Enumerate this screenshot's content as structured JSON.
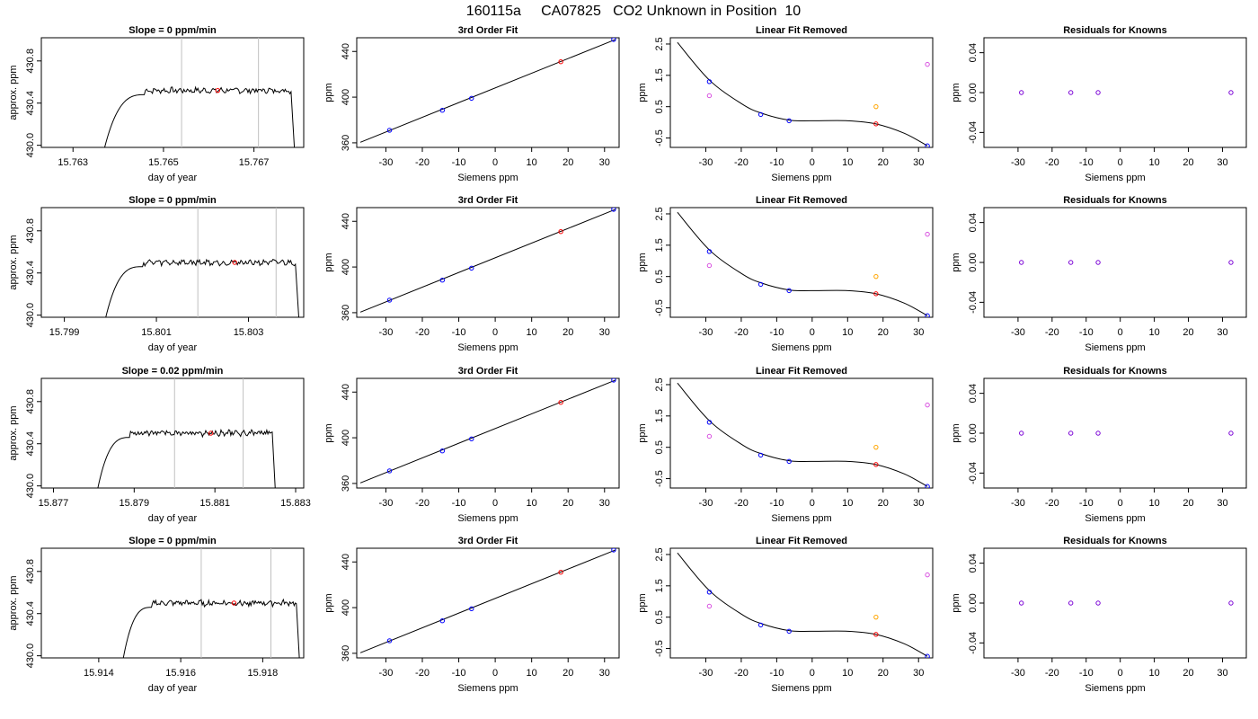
{
  "page": {
    "title": "160115a     CA07825   CO2 Unknown in Position  10"
  },
  "colors": {
    "axis": "#000000",
    "trace": "#000000",
    "vline": "#c0c0c0",
    "known": "#0000ff",
    "unknown": "#ff0000",
    "magenta": "#d84fe0",
    "orange": "#ffa500",
    "residual": "#7a00d6"
  },
  "chart_data": [
    {
      "type": "line",
      "row": 0,
      "col": 0,
      "title": "Slope =  0  ppm/min",
      "xlabel": "day of year",
      "ylabel": "approx. ppm",
      "xlim": [
        15.7623,
        15.7681
      ],
      "ylim": [
        429.98,
        431.02
      ],
      "xticks": [
        15.763,
        15.765,
        15.767
      ],
      "xticklabels": [
        "15.763",
        "15.765",
        "15.767"
      ],
      "yticks": [
        430.0,
        430.4,
        430.8
      ],
      "yticklabels": [
        "430.0",
        "430.4",
        "430.8"
      ],
      "vlines": [
        15.7654,
        15.7671
      ],
      "trace": {
        "x0": 15.7637,
        "x1": 15.7679,
        "rise_end": 15.7646,
        "level": 430.52
      },
      "marker": {
        "x": 15.7662,
        "y": 430.52
      }
    },
    {
      "type": "scatter",
      "row": 0,
      "col": 1,
      "title": "3rd Order Fit",
      "xlabel": "Siemens ppm",
      "ylabel": "ppm",
      "xlim": [
        -38,
        34
      ],
      "ylim": [
        356,
        452
      ],
      "xticks": [
        -30,
        -20,
        -10,
        0,
        10,
        20,
        30
      ],
      "xticklabels": [
        "-30",
        "-20",
        "-10",
        "0",
        "10",
        "20",
        "30"
      ],
      "yticks": [
        360,
        400,
        440
      ],
      "yticklabels": [
        "360",
        "400",
        "440"
      ],
      "line": [
        [
          -37,
          360.5
        ],
        [
          33,
          450.5
        ]
      ],
      "knowns": [
        [
          -29,
          371
        ],
        [
          -14.5,
          388.5
        ],
        [
          -6.5,
          399
        ],
        [
          32.5,
          450.5
        ]
      ],
      "unknown": [
        [
          18,
          431
        ]
      ]
    },
    {
      "type": "scatter",
      "row": 0,
      "col": 2,
      "title": "Linear Fit Removed",
      "xlabel": "Siemens ppm",
      "ylabel": "ppm",
      "xlim": [
        -40,
        34
      ],
      "ylim": [
        -0.8,
        2.7
      ],
      "xticks": [
        -30,
        -20,
        -10,
        0,
        10,
        20,
        30
      ],
      "xticklabels": [
        "-30",
        "-20",
        "-10",
        "0",
        "10",
        "20",
        "30"
      ],
      "yticks": [
        -0.5,
        0.5,
        1.5,
        2.5
      ],
      "yticklabels": [
        "-0.5",
        "0.5",
        "1.5",
        "2.5"
      ],
      "curve": [
        [
          -38,
          2.55
        ],
        [
          -29,
          1.35
        ],
        [
          -20,
          0.6
        ],
        [
          -14.5,
          0.3
        ],
        [
          -6.5,
          0.07
        ],
        [
          0,
          0.05
        ],
        [
          10,
          0.05
        ],
        [
          18,
          -0.05
        ],
        [
          26,
          -0.35
        ],
        [
          32.5,
          -0.75
        ]
      ],
      "knowns": [
        [
          -29,
          1.3
        ],
        [
          -14.5,
          0.25
        ],
        [
          -6.5,
          0.05
        ],
        [
          32.5,
          -0.75
        ]
      ],
      "unknown": [
        [
          18,
          -0.05
        ]
      ],
      "magenta": [
        [
          -29,
          0.85
        ],
        [
          32.5,
          1.85
        ]
      ],
      "orange": [
        [
          18,
          0.5
        ]
      ]
    },
    {
      "type": "scatter",
      "row": 0,
      "col": 3,
      "title": "Residuals for Knowns",
      "xlabel": "Siemens ppm",
      "ylabel": "ppm",
      "xlim": [
        -40,
        37
      ],
      "ylim": [
        -0.055,
        0.055
      ],
      "xticks": [
        -30,
        -20,
        -10,
        0,
        10,
        20,
        30
      ],
      "xticklabels": [
        "-30",
        "-20",
        "-10",
        "0",
        "10",
        "20",
        "30"
      ],
      "yticks": [
        -0.04,
        0.0,
        0.04
      ],
      "yticklabels": [
        "-0.04",
        "0.00",
        "0.04"
      ],
      "residuals": [
        [
          -29,
          0
        ],
        [
          -14.5,
          0
        ],
        [
          -6.5,
          0
        ],
        [
          32.5,
          0
        ]
      ]
    },
    {
      "type": "line",
      "row": 1,
      "col": 0,
      "title": "Slope =  0  ppm/min",
      "xlabel": "day of year",
      "ylabel": "approx. ppm",
      "xlim": [
        15.7985,
        15.8042
      ],
      "ylim": [
        429.98,
        431.02
      ],
      "xticks": [
        15.799,
        15.801,
        15.803
      ],
      "xticklabels": [
        "15.799",
        "15.801",
        "15.803"
      ],
      "yticks": [
        430.0,
        430.4,
        430.8
      ],
      "yticklabels": [
        "430.0",
        "430.4",
        "430.8"
      ],
      "vlines": [
        15.8019,
        15.8036
      ],
      "trace": {
        "x0": 15.7999,
        "x1": 15.8041,
        "rise_end": 15.8007,
        "level": 430.5
      },
      "marker": {
        "x": 15.8027,
        "y": 430.5
      }
    },
    {
      "type": "scatter",
      "row": 1,
      "col": 1,
      "title": "3rd Order Fit",
      "xlabel": "Siemens ppm",
      "ylabel": "ppm",
      "xlim": [
        -38,
        34
      ],
      "ylim": [
        356,
        452
      ],
      "xticks": [
        -30,
        -20,
        -10,
        0,
        10,
        20,
        30
      ],
      "xticklabels": [
        "-30",
        "-20",
        "-10",
        "0",
        "10",
        "20",
        "30"
      ],
      "yticks": [
        360,
        400,
        440
      ],
      "yticklabels": [
        "360",
        "400",
        "440"
      ],
      "line": [
        [
          -37,
          360.5
        ],
        [
          33,
          450.5
        ]
      ],
      "knowns": [
        [
          -29,
          371
        ],
        [
          -14.5,
          388.5
        ],
        [
          -6.5,
          399
        ],
        [
          32.5,
          450.5
        ]
      ],
      "unknown": [
        [
          18,
          431
        ]
      ]
    },
    {
      "type": "scatter",
      "row": 1,
      "col": 2,
      "title": "Linear Fit Removed",
      "xlabel": "Siemens ppm",
      "ylabel": "ppm",
      "xlim": [
        -40,
        34
      ],
      "ylim": [
        -0.8,
        2.7
      ],
      "xticks": [
        -30,
        -20,
        -10,
        0,
        10,
        20,
        30
      ],
      "xticklabels": [
        "-30",
        "-20",
        "-10",
        "0",
        "10",
        "20",
        "30"
      ],
      "yticks": [
        -0.5,
        0.5,
        1.5,
        2.5
      ],
      "yticklabels": [
        "-0.5",
        "0.5",
        "1.5",
        "2.5"
      ],
      "curve": [
        [
          -38,
          2.55
        ],
        [
          -29,
          1.35
        ],
        [
          -20,
          0.6
        ],
        [
          -14.5,
          0.3
        ],
        [
          -6.5,
          0.07
        ],
        [
          0,
          0.05
        ],
        [
          10,
          0.05
        ],
        [
          18,
          -0.05
        ],
        [
          26,
          -0.35
        ],
        [
          32.5,
          -0.75
        ]
      ],
      "knowns": [
        [
          -29,
          1.3
        ],
        [
          -14.5,
          0.25
        ],
        [
          -6.5,
          0.05
        ],
        [
          32.5,
          -0.75
        ]
      ],
      "unknown": [
        [
          18,
          -0.05
        ]
      ],
      "magenta": [
        [
          -29,
          0.85
        ],
        [
          32.5,
          1.85
        ]
      ],
      "orange": [
        [
          18,
          0.5
        ]
      ]
    },
    {
      "type": "scatter",
      "row": 1,
      "col": 3,
      "title": "Residuals for Knowns",
      "xlabel": "Siemens ppm",
      "ylabel": "ppm",
      "xlim": [
        -40,
        37
      ],
      "ylim": [
        -0.055,
        0.055
      ],
      "xticks": [
        -30,
        -20,
        -10,
        0,
        10,
        20,
        30
      ],
      "xticklabels": [
        "-30",
        "-20",
        "-10",
        "0",
        "10",
        "20",
        "30"
      ],
      "yticks": [
        -0.04,
        0.0,
        0.04
      ],
      "yticklabels": [
        "-0.04",
        "0.00",
        "0.04"
      ],
      "residuals": [
        [
          -29,
          0
        ],
        [
          -14.5,
          0
        ],
        [
          -6.5,
          0
        ],
        [
          32.5,
          0
        ]
      ]
    },
    {
      "type": "line",
      "row": 2,
      "col": 0,
      "title": "Slope =  0.02  ppm/min",
      "xlabel": "day of year",
      "ylabel": "approx. ppm",
      "xlim": [
        15.8767,
        15.8832
      ],
      "ylim": [
        429.98,
        431.02
      ],
      "xticks": [
        15.877,
        15.879,
        15.881,
        15.883
      ],
      "xticklabels": [
        "15.877",
        "15.879",
        "15.881",
        "15.883"
      ],
      "yticks": [
        430.0,
        430.4,
        430.8
      ],
      "yticklabels": [
        "430.0",
        "430.4",
        "430.8"
      ],
      "vlines": [
        15.88,
        15.8817
      ],
      "trace": {
        "x0": 15.8781,
        "x1": 15.8825,
        "rise_end": 15.8789,
        "level": 430.5
      },
      "marker": {
        "x": 15.8809,
        "y": 430.5
      }
    },
    {
      "type": "scatter",
      "row": 2,
      "col": 1,
      "title": "3rd Order Fit",
      "xlabel": "Siemens ppm",
      "ylabel": "ppm",
      "xlim": [
        -38,
        34
      ],
      "ylim": [
        356,
        452
      ],
      "xticks": [
        -30,
        -20,
        -10,
        0,
        10,
        20,
        30
      ],
      "xticklabels": [
        "-30",
        "-20",
        "-10",
        "0",
        "10",
        "20",
        "30"
      ],
      "yticks": [
        360,
        400,
        440
      ],
      "yticklabels": [
        "360",
        "400",
        "440"
      ],
      "line": [
        [
          -37,
          360.5
        ],
        [
          33,
          450.5
        ]
      ],
      "knowns": [
        [
          -29,
          371
        ],
        [
          -14.5,
          388.5
        ],
        [
          -6.5,
          399
        ],
        [
          32.5,
          450.5
        ]
      ],
      "unknown": [
        [
          18,
          431
        ]
      ]
    },
    {
      "type": "scatter",
      "row": 2,
      "col": 2,
      "title": "Linear Fit Removed",
      "xlabel": "Siemens ppm",
      "ylabel": "ppm",
      "xlim": [
        -40,
        34
      ],
      "ylim": [
        -0.8,
        2.7
      ],
      "xticks": [
        -30,
        -20,
        -10,
        0,
        10,
        20,
        30
      ],
      "xticklabels": [
        "-30",
        "-20",
        "-10",
        "0",
        "10",
        "20",
        "30"
      ],
      "yticks": [
        -0.5,
        0.5,
        1.5,
        2.5
      ],
      "yticklabels": [
        "-0.5",
        "0.5",
        "1.5",
        "2.5"
      ],
      "curve": [
        [
          -38,
          2.55
        ],
        [
          -29,
          1.35
        ],
        [
          -20,
          0.6
        ],
        [
          -14.5,
          0.3
        ],
        [
          -6.5,
          0.07
        ],
        [
          0,
          0.05
        ],
        [
          10,
          0.05
        ],
        [
          18,
          -0.05
        ],
        [
          26,
          -0.35
        ],
        [
          32.5,
          -0.75
        ]
      ],
      "knowns": [
        [
          -29,
          1.3
        ],
        [
          -14.5,
          0.25
        ],
        [
          -6.5,
          0.05
        ],
        [
          32.5,
          -0.75
        ]
      ],
      "unknown": [
        [
          18,
          -0.05
        ]
      ],
      "magenta": [
        [
          -29,
          0.85
        ],
        [
          32.5,
          1.85
        ]
      ],
      "orange": [
        [
          18,
          0.5
        ]
      ]
    },
    {
      "type": "scatter",
      "row": 2,
      "col": 3,
      "title": "Residuals for Knowns",
      "xlabel": "Siemens ppm",
      "ylabel": "ppm",
      "xlim": [
        -40,
        37
      ],
      "ylim": [
        -0.055,
        0.055
      ],
      "xticks": [
        -30,
        -20,
        -10,
        0,
        10,
        20,
        30
      ],
      "xticklabels": [
        "-30",
        "-20",
        "-10",
        "0",
        "10",
        "20",
        "30"
      ],
      "yticks": [
        -0.04,
        0.0,
        0.04
      ],
      "yticklabels": [
        "-0.04",
        "0.00",
        "0.04"
      ],
      "residuals": [
        [
          -29,
          0
        ],
        [
          -14.5,
          0
        ],
        [
          -6.5,
          0
        ],
        [
          32.5,
          0
        ]
      ]
    },
    {
      "type": "line",
      "row": 3,
      "col": 0,
      "title": "Slope =  0  ppm/min",
      "xlabel": "day of year",
      "ylabel": "approx. ppm",
      "xlim": [
        15.9126,
        15.919
      ],
      "ylim": [
        429.98,
        431.02
      ],
      "xticks": [
        15.914,
        15.916,
        15.918
      ],
      "xticklabels": [
        "15.914",
        "15.916",
        "15.918"
      ],
      "yticks": [
        430.0,
        430.4,
        430.8
      ],
      "yticklabels": [
        "430.0",
        "430.4",
        "430.8"
      ],
      "vlines": [
        15.9165,
        15.9182
      ],
      "trace": {
        "x0": 15.9146,
        "x1": 15.9189,
        "rise_end": 15.9153,
        "level": 430.5
      },
      "marker": {
        "x": 15.9173,
        "y": 430.5
      }
    },
    {
      "type": "scatter",
      "row": 3,
      "col": 1,
      "title": "3rd Order Fit",
      "xlabel": "Siemens ppm",
      "ylabel": "ppm",
      "xlim": [
        -38,
        34
      ],
      "ylim": [
        356,
        452
      ],
      "xticks": [
        -30,
        -20,
        -10,
        0,
        10,
        20,
        30
      ],
      "xticklabels": [
        "-30",
        "-20",
        "-10",
        "0",
        "10",
        "20",
        "30"
      ],
      "yticks": [
        360,
        400,
        440
      ],
      "yticklabels": [
        "360",
        "400",
        "440"
      ],
      "line": [
        [
          -37,
          360.5
        ],
        [
          33,
          450.5
        ]
      ],
      "knowns": [
        [
          -29,
          371
        ],
        [
          -14.5,
          388.5
        ],
        [
          -6.5,
          399
        ],
        [
          32.5,
          450.5
        ]
      ],
      "unknown": [
        [
          18,
          431
        ]
      ]
    },
    {
      "type": "scatter",
      "row": 3,
      "col": 2,
      "title": "Linear Fit Removed",
      "xlabel": "Siemens ppm",
      "ylabel": "ppm",
      "xlim": [
        -40,
        34
      ],
      "ylim": [
        -0.8,
        2.7
      ],
      "xticks": [
        -30,
        -20,
        -10,
        0,
        10,
        20,
        30
      ],
      "xticklabels": [
        "-30",
        "-20",
        "-10",
        "0",
        "10",
        "20",
        "30"
      ],
      "yticks": [
        -0.5,
        0.5,
        1.5,
        2.5
      ],
      "yticklabels": [
        "-0.5",
        "0.5",
        "1.5",
        "2.5"
      ],
      "curve": [
        [
          -38,
          2.55
        ],
        [
          -29,
          1.35
        ],
        [
          -20,
          0.6
        ],
        [
          -14.5,
          0.3
        ],
        [
          -6.5,
          0.07
        ],
        [
          0,
          0.05
        ],
        [
          10,
          0.05
        ],
        [
          18,
          -0.05
        ],
        [
          26,
          -0.35
        ],
        [
          32.5,
          -0.75
        ]
      ],
      "knowns": [
        [
          -29,
          1.3
        ],
        [
          -14.5,
          0.25
        ],
        [
          -6.5,
          0.05
        ],
        [
          32.5,
          -0.75
        ]
      ],
      "unknown": [
        [
          18,
          -0.05
        ]
      ],
      "magenta": [
        [
          -29,
          0.85
        ],
        [
          32.5,
          1.85
        ]
      ],
      "orange": [
        [
          18,
          0.5
        ]
      ]
    },
    {
      "type": "scatter",
      "row": 3,
      "col": 3,
      "title": "Residuals for Knowns",
      "xlabel": "Siemens ppm",
      "ylabel": "ppm",
      "xlim": [
        -40,
        37
      ],
      "ylim": [
        -0.055,
        0.055
      ],
      "xticks": [
        -30,
        -20,
        -10,
        0,
        10,
        20,
        30
      ],
      "xticklabels": [
        "-30",
        "-20",
        "-10",
        "0",
        "10",
        "20",
        "30"
      ],
      "yticks": [
        -0.04,
        0.0,
        0.04
      ],
      "yticklabels": [
        "-0.04",
        "0.00",
        "0.04"
      ],
      "residuals": [
        [
          -29,
          0
        ],
        [
          -14.5,
          0
        ],
        [
          -6.5,
          0
        ],
        [
          32.5,
          0
        ]
      ]
    }
  ]
}
